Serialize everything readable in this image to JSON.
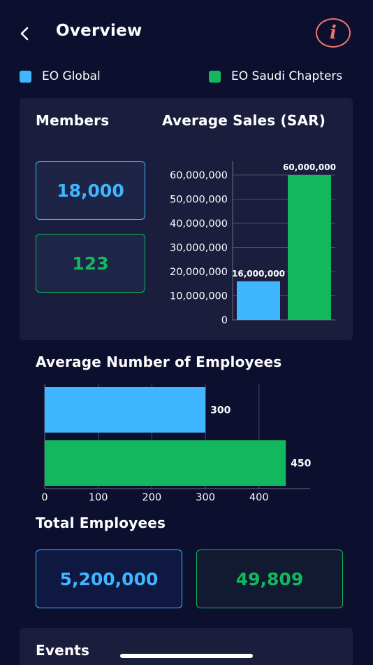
{
  "header": {
    "title": "Overview",
    "back_icon": "chevron-left-icon",
    "info_icon": "info-icon",
    "info_glyph": "i"
  },
  "legend": [
    {
      "label": "EO Global",
      "color": "#3fb6ff"
    },
    {
      "label": "EO Saudi Chapters",
      "color": "#13b85e"
    }
  ],
  "members": {
    "title": "Members",
    "global": "18,000",
    "saudi": "123"
  },
  "chart_data": [
    {
      "type": "bar",
      "title": "Average Sales (SAR)",
      "categories": [
        "EO Global",
        "EO Saudi Chapters"
      ],
      "values": [
        16000000,
        60000000
      ],
      "value_labels": [
        "16,000,000",
        "60,000,000"
      ],
      "colors": [
        "#3fb6ff",
        "#13b85e"
      ],
      "ylim": [
        0,
        60000000
      ],
      "yticks": [
        "0",
        "10,000,000",
        "20,000,000",
        "30,000,000",
        "40,000,000",
        "50,000,000",
        "60,000,000"
      ],
      "grid": true
    },
    {
      "type": "bar",
      "orientation": "horizontal",
      "title": "Average Number of Employees",
      "categories": [
        "EO Global",
        "EO Saudi Chapters"
      ],
      "values": [
        300,
        450
      ],
      "value_labels": [
        "300",
        "450"
      ],
      "colors": [
        "#3fb6ff",
        "#13b85e"
      ],
      "xlim": [
        0,
        500
      ],
      "xticks": [
        "0",
        "100",
        "200",
        "300",
        "400"
      ],
      "grid": true
    }
  ],
  "total_employees": {
    "title": "Total Employees",
    "global": "5,200,000",
    "saudi": "49,809"
  },
  "events": {
    "title": "Events"
  }
}
